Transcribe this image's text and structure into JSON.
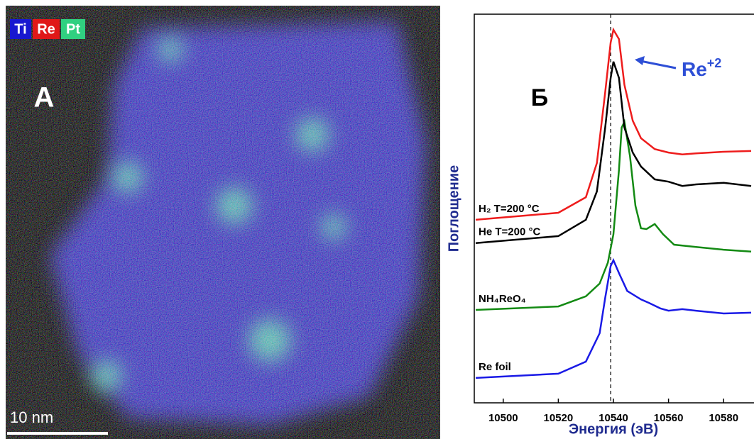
{
  "image_panel": {
    "channels": [
      "Ti",
      "Re",
      "Pt"
    ],
    "label": "A",
    "scale_bar": "10 nm"
  },
  "chart_data": {
    "type": "line",
    "panel_label": "Б",
    "x_label": "Энергия (эВ)",
    "y_label": "Поглощение",
    "annotation": "Re",
    "annotation_sup": "+2",
    "reference_line_x": 10539,
    "xlim": [
      10490,
      10590
    ],
    "xticks": [
      10500,
      10520,
      10540,
      10560,
      10580
    ],
    "ylim": [
      0,
      100
    ],
    "series": [
      {
        "name": "Re foil",
        "color": "#1a1ae6",
        "x": [
          10490,
          10520,
          10530,
          10535,
          10537,
          10539,
          10540,
          10542,
          10545,
          10550,
          10553,
          10557,
          10560,
          10565,
          10570,
          10580,
          10590
        ],
        "values": [
          6.4,
          7.5,
          10.6,
          17.9,
          27.0,
          35.2,
          36.7,
          33.4,
          28.8,
          26.6,
          25.7,
          24.3,
          23.7,
          24.1,
          23.7,
          23.0,
          23.2
        ]
      },
      {
        "name": "NH₄ReO₄",
        "color": "#138a13",
        "x": [
          10490,
          10520,
          10530,
          10535,
          10538,
          10540,
          10542,
          10543,
          10544,
          10546,
          10548,
          10550,
          10552,
          10555,
          10558,
          10562,
          10570,
          10580,
          10590
        ],
        "values": [
          23.9,
          24.8,
          27.4,
          30.7,
          36.1,
          43.4,
          59.9,
          70.8,
          72.3,
          63.5,
          50.7,
          44.9,
          44.7,
          46.0,
          43.4,
          40.7,
          40.1,
          39.4,
          38.9
        ]
      },
      {
        "name": "He T=200 °C",
        "color": "#000000",
        "x": [
          10490,
          10520,
          10530,
          10534,
          10537,
          10539,
          10540,
          10542,
          10544,
          10547,
          10550,
          10555,
          10560,
          10565,
          10570,
          10580,
          10590
        ],
        "values": [
          41.1,
          42.9,
          47.1,
          54.4,
          70.8,
          83.6,
          87.8,
          83.6,
          70.8,
          64.4,
          60.8,
          57.5,
          56.9,
          55.8,
          56.2,
          56.6,
          55.8
        ]
      },
      {
        "name": "H₂ T=200 °C",
        "color": "#ee1c1c",
        "x": [
          10490,
          10520,
          10530,
          10534,
          10537,
          10539,
          10540,
          10542,
          10544,
          10547,
          10550,
          10555,
          10560,
          10565,
          10570,
          10580,
          10590
        ],
        "values": [
          47.1,
          48.9,
          52.9,
          61.7,
          79.9,
          92.7,
          96.0,
          93.6,
          81.8,
          72.6,
          68.1,
          65.3,
          64.4,
          63.9,
          64.2,
          64.6,
          64.8
        ]
      }
    ]
  }
}
